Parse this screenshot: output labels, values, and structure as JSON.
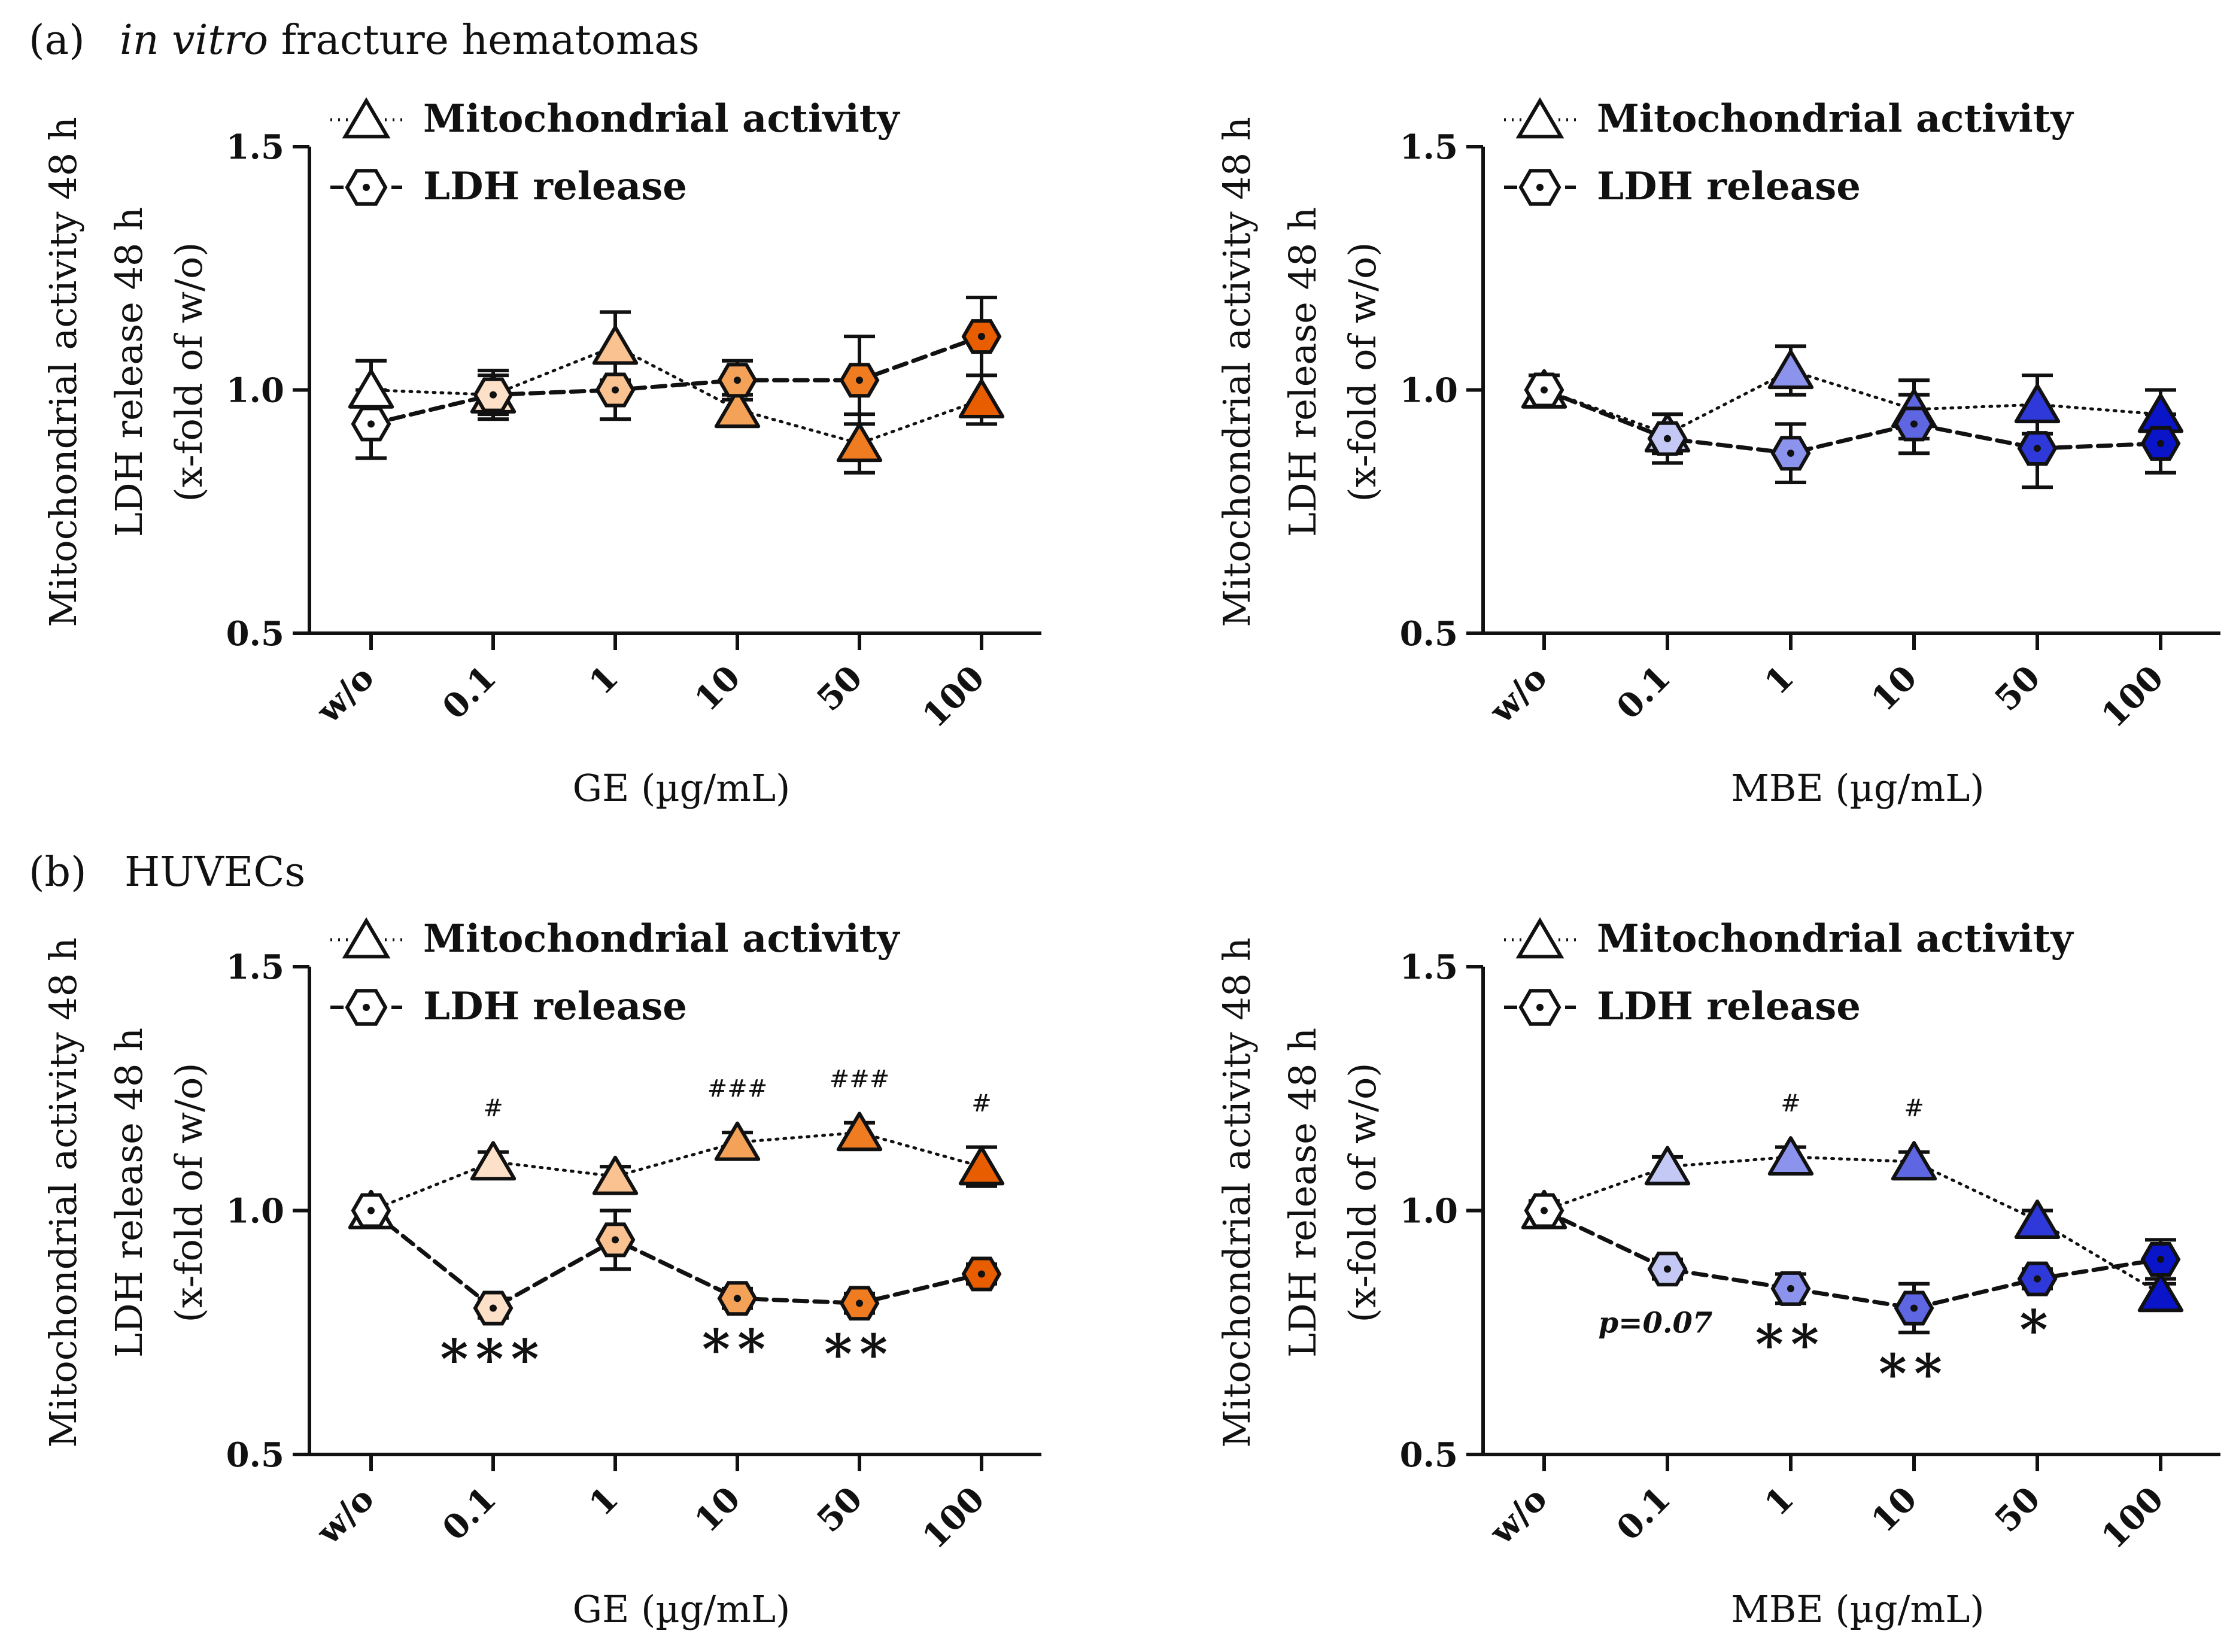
{
  "sections": [
    {
      "id": "a",
      "letter": "(a)",
      "title_italic": "in vitro",
      "title_rest": " fracture hematomas"
    },
    {
      "id": "b",
      "letter": "(b)",
      "title_italic": "",
      "title_rest": "HUVECs"
    }
  ],
  "chart_data": [
    {
      "type": "line",
      "section": "a",
      "ylabel_lines": [
        "Mitochondrial activity 48 h",
        "LDH release 48 h",
        "(x-fold of w/o)"
      ],
      "xlabel": "GE (µg/mL)",
      "categories": [
        "w/o",
        "0.1",
        "1",
        "10",
        "50",
        "100"
      ],
      "ylim": [
        0.5,
        1.5
      ],
      "yticks": [
        "0.5",
        "1.0",
        "1.5"
      ],
      "legend": [
        "Mitochondrial activity",
        "LDH release"
      ],
      "legend_position": "top-left",
      "colors": [
        "#ffffff",
        "#fde0c8",
        "#f9c290",
        "#f5a259",
        "#f07c22",
        "#e85d00"
      ],
      "series": [
        {
          "name": "Mitochondrial activity",
          "marker": "triangle",
          "line": "dotted",
          "values": [
            1.0,
            0.99,
            1.09,
            0.96,
            0.89,
            0.98
          ],
          "errors": [
            0.06,
            0.04,
            0.07,
            0.03,
            0.06,
            0.05
          ]
        },
        {
          "name": "LDH release",
          "marker": "hexagon",
          "line": "dashed",
          "values": [
            0.93,
            0.99,
            1.0,
            1.02,
            1.02,
            1.11
          ],
          "errors": [
            0.07,
            0.05,
            0.06,
            0.04,
            0.09,
            0.08
          ]
        }
      ],
      "annotations": []
    },
    {
      "type": "line",
      "section": "a",
      "ylabel_lines": [
        "Mitochondrial activity 48 h",
        "LDH release 48 h",
        "(x-fold of w/o)"
      ],
      "xlabel": "MBE (µg/mL)",
      "categories": [
        "w/o",
        "0.1",
        "1",
        "10",
        "50",
        "100"
      ],
      "ylim": [
        0.5,
        1.5
      ],
      "yticks": [
        "0.5",
        "1.0",
        "1.5"
      ],
      "legend": [
        "Mitochondrial activity",
        "LDH release"
      ],
      "legend_position": "top-left",
      "colors": [
        "#ffffff",
        "#c4c8f5",
        "#8c93ec",
        "#5e66e2",
        "#2f39d9",
        "#0a14c8"
      ],
      "series": [
        {
          "name": "Mitochondrial activity",
          "marker": "triangle",
          "line": "dotted",
          "values": [
            1.0,
            0.91,
            1.04,
            0.96,
            0.97,
            0.95
          ],
          "errors": [
            0.03,
            0.04,
            0.05,
            0.06,
            0.06,
            0.05
          ]
        },
        {
          "name": "LDH release",
          "marker": "hexagon",
          "line": "dashed",
          "values": [
            1.0,
            0.9,
            0.87,
            0.93,
            0.88,
            0.89
          ],
          "errors": [
            0.03,
            0.05,
            0.06,
            0.06,
            0.08,
            0.06
          ]
        }
      ],
      "annotations": []
    },
    {
      "type": "line",
      "section": "b",
      "ylabel_lines": [
        "Mitochondrial activity 48 h",
        "LDH release 48 h",
        "(x-fold of w/o)"
      ],
      "xlabel": "GE (µg/mL)",
      "categories": [
        "w/o",
        "0.1",
        "1",
        "10",
        "50",
        "100"
      ],
      "ylim": [
        0.5,
        1.5
      ],
      "yticks": [
        "0.5",
        "1.0",
        "1.5"
      ],
      "legend": [
        "Mitochondrial activity",
        "LDH release"
      ],
      "legend_position": "top-left",
      "colors": [
        "#ffffff",
        "#fde0c8",
        "#f9c290",
        "#f5a259",
        "#f07c22",
        "#e85d00"
      ],
      "series": [
        {
          "name": "Mitochondrial activity",
          "marker": "triangle",
          "line": "dotted",
          "values": [
            1.0,
            1.1,
            1.07,
            1.14,
            1.16,
            1.09
          ],
          "errors": [
            0.01,
            0.02,
            0.02,
            0.02,
            0.02,
            0.04
          ]
        },
        {
          "name": "LDH release",
          "marker": "hexagon",
          "line": "dashed",
          "values": [
            1.0,
            0.8,
            0.94,
            0.82,
            0.81,
            0.87
          ],
          "errors": [
            0.01,
            0.02,
            0.06,
            0.02,
            0.02,
            0.02
          ]
        }
      ],
      "annotations": [
        {
          "category": "0.1",
          "text": "#",
          "where": "above-mito"
        },
        {
          "category": "10",
          "text": "###",
          "where": "above-mito"
        },
        {
          "category": "50",
          "text": "###",
          "where": "above-mito"
        },
        {
          "category": "100",
          "text": "#",
          "where": "above-mito"
        },
        {
          "category": "0.1",
          "text": "***",
          "where": "below-ldh"
        },
        {
          "category": "10",
          "text": "**",
          "where": "below-ldh"
        },
        {
          "category": "50",
          "text": "**",
          "where": "below-ldh"
        }
      ]
    },
    {
      "type": "line",
      "section": "b",
      "ylabel_lines": [
        "Mitochondrial activity 48 h",
        "LDH release 48 h",
        "(x-fold of w/o)"
      ],
      "xlabel": "MBE (µg/mL)",
      "categories": [
        "w/o",
        "0.1",
        "1",
        "10",
        "50",
        "100"
      ],
      "ylim": [
        0.5,
        1.5
      ],
      "yticks": [
        "0.5",
        "1.0",
        "1.5"
      ],
      "legend": [
        "Mitochondrial activity",
        "LDH release"
      ],
      "legend_position": "top-left",
      "colors": [
        "#ffffff",
        "#c4c8f5",
        "#8c93ec",
        "#5e66e2",
        "#2f39d9",
        "#0a14c8"
      ],
      "series": [
        {
          "name": "Mitochondrial activity",
          "marker": "triangle",
          "line": "dotted",
          "values": [
            1.0,
            1.09,
            1.11,
            1.1,
            0.98,
            0.83
          ],
          "errors": [
            0.02,
            0.02,
            0.02,
            0.02,
            0.02,
            0.02
          ]
        },
        {
          "name": "LDH release",
          "marker": "hexagon",
          "line": "dashed",
          "values": [
            1.0,
            0.88,
            0.84,
            0.8,
            0.86,
            0.9
          ],
          "errors": [
            0.01,
            0.02,
            0.03,
            0.05,
            0.02,
            0.04
          ]
        }
      ],
      "annotations": [
        {
          "category": "1",
          "text": "#",
          "where": "above-mito"
        },
        {
          "category": "10",
          "text": "#",
          "where": "above-mito"
        },
        {
          "category": "0.1",
          "text": "p=0.07",
          "where": "below-ldh-italic"
        },
        {
          "category": "1",
          "text": "**",
          "where": "below-ldh"
        },
        {
          "category": "10",
          "text": "**",
          "where": "below-ldh"
        },
        {
          "category": "50",
          "text": "*",
          "where": "below-ldh"
        }
      ]
    }
  ]
}
